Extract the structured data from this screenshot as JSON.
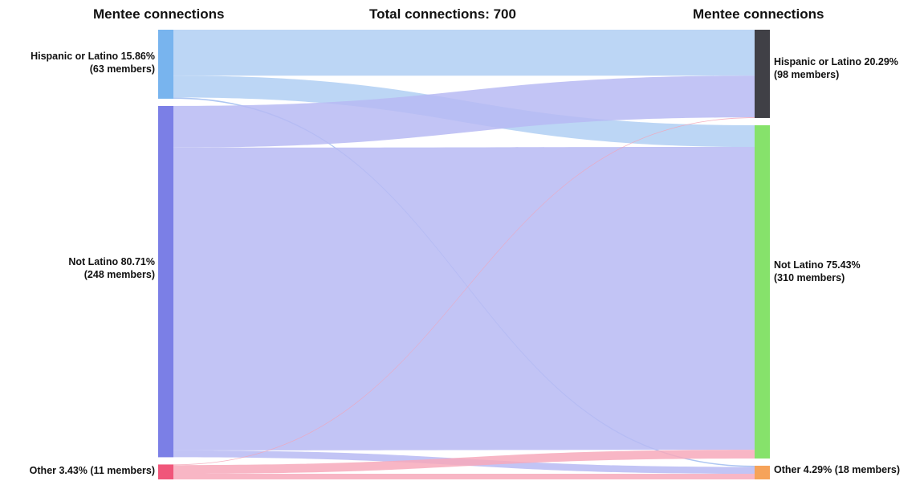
{
  "headers": {
    "left": "Mentee connections",
    "center": "Total connections: 700",
    "right": "Mentee connections"
  },
  "chart_data": {
    "type": "sankey",
    "total": 700,
    "nodes_left": [
      {
        "id": "L_hisp",
        "line1": "Hispanic or Latino 15.86%",
        "line2": "(63 members)",
        "percent": 15.86,
        "members": 63,
        "color": "#78b4ee"
      },
      {
        "id": "L_not",
        "line1": "Not Latino 80.71%",
        "line2": "(248 members)",
        "percent": 80.71,
        "members": 248,
        "color": "#7b7fe6"
      },
      {
        "id": "L_other",
        "line1": "Other 3.43% (11 members)",
        "line2": "",
        "percent": 3.43,
        "members": 11,
        "color": "#f0567a"
      }
    ],
    "nodes_right": [
      {
        "id": "R_hisp",
        "line1": "Hispanic or Latino 20.29%",
        "line2": "(98 members)",
        "percent": 20.29,
        "members": 98,
        "color": "#404046"
      },
      {
        "id": "R_not",
        "line1": "Not Latino 75.43%",
        "line2": "(310 members)",
        "percent": 75.43,
        "members": 310,
        "color": "#86e26b"
      },
      {
        "id": "R_other",
        "line1": "Other 4.29% (18 members)",
        "line2": "",
        "percent": 4.29,
        "members": 18,
        "color": "#f6a35a"
      }
    ],
    "links": [
      {
        "source": "L_hisp",
        "target": "R_hisp",
        "value": 74,
        "color": "#b0cff3"
      },
      {
        "source": "L_hisp",
        "target": "R_not",
        "value": 35,
        "color": "#b0cff3"
      },
      {
        "source": "L_hisp",
        "target": "R_other",
        "value": 2,
        "color": "#9fbcf0"
      },
      {
        "source": "L_not",
        "target": "R_hisp",
        "value": 67,
        "color": "#b7baf3"
      },
      {
        "source": "L_not",
        "target": "R_not",
        "value": 487,
        "color": "#b7baf3"
      },
      {
        "source": "L_not",
        "target": "R_other",
        "value": 11,
        "color": "#b7baf3"
      },
      {
        "source": "L_other",
        "target": "R_hisp",
        "value": 1,
        "color": "#f3a3b6"
      },
      {
        "source": "L_other",
        "target": "R_not",
        "value": 14,
        "color": "#f7a9bb"
      },
      {
        "source": "L_other",
        "target": "R_other",
        "value": 9,
        "color": "#f7a9bb"
      }
    ],
    "legend": "none",
    "grid": false
  }
}
